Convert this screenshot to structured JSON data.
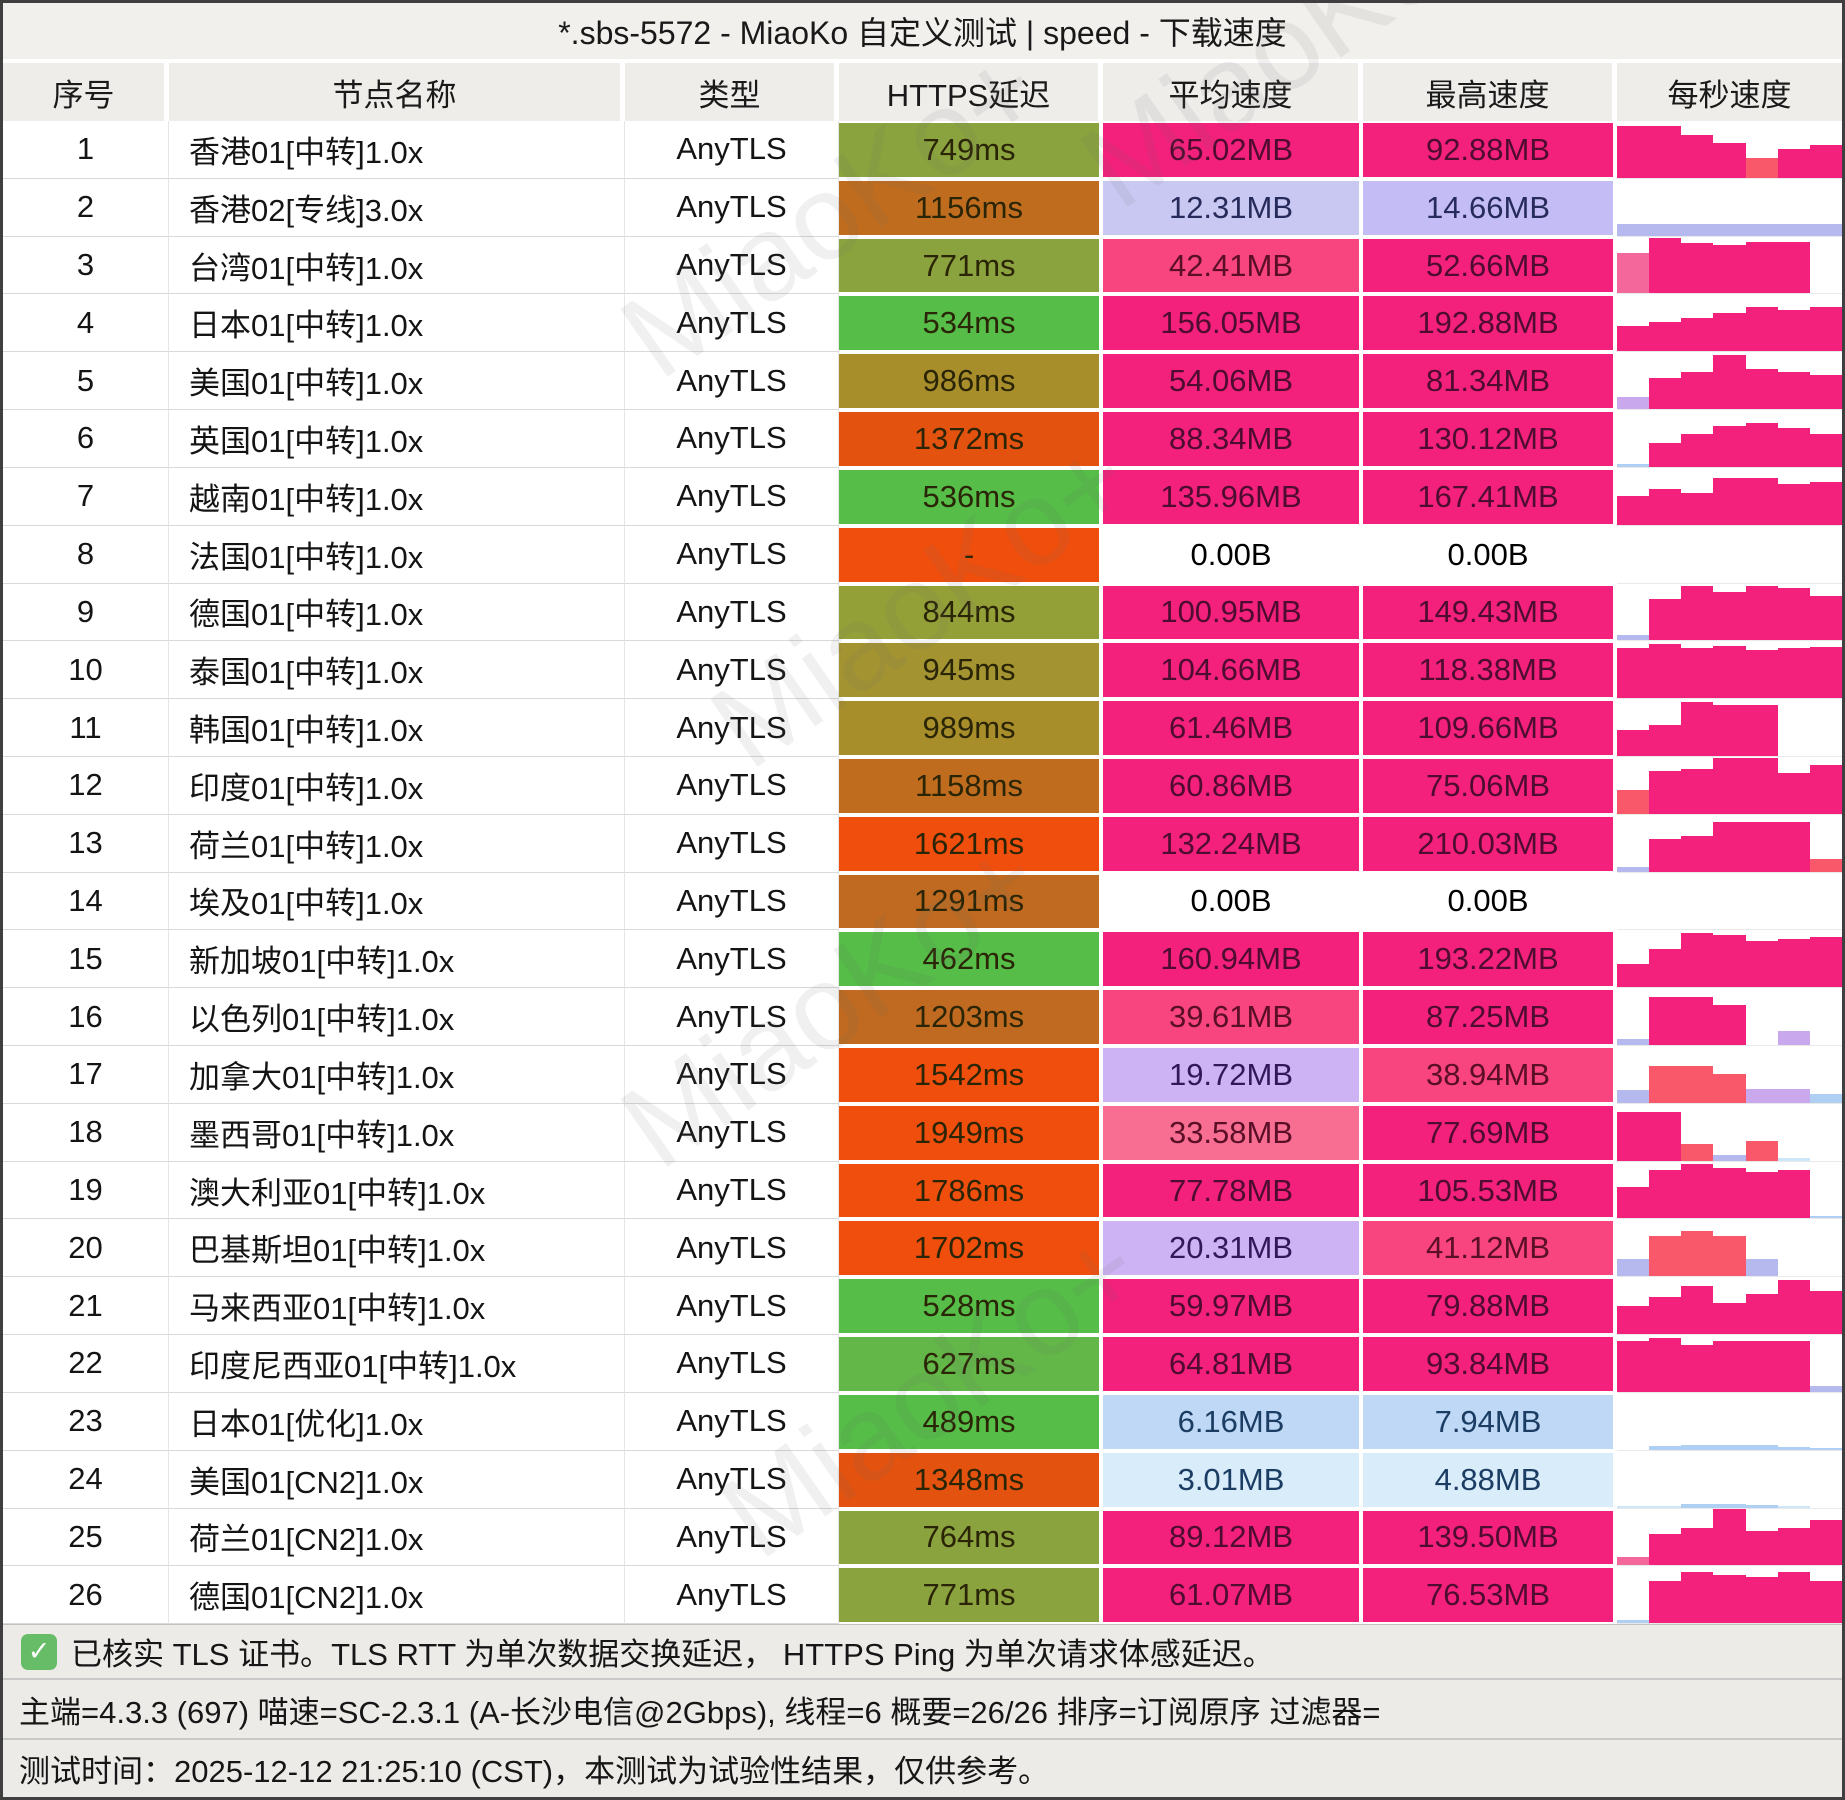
{
  "title": "*.sbs-5572 - MiaoKo 自定义测试 | speed - 下载速度",
  "watermark": "MiaoKo+",
  "columns": {
    "num": "序号",
    "name": "节点名称",
    "type": "类型",
    "latency": "HTTPS延迟",
    "avg": "平均速度",
    "max": "最高速度",
    "per_second": "每秒速度"
  },
  "colors": {
    "chart": {
      "p": "#F3207C",
      "r": "#F9586B",
      "m": "#F4679A",
      "v": "#C9A8EE",
      "l": "#B6B9EE",
      "b": "#AFD0F2",
      "lb": "#CDE6F8"
    },
    "cell_text": {
      "#F3207C": "#4E0C30",
      "#F8457F": "#5A0F26",
      "#F76E92": "#5A0F26",
      "#C9C8F2": "#272B5B",
      "#C4BCF5": "#272B5B",
      "#CDB3F3": "#33175B",
      "#BFD8F6": "#1C3D63",
      "#D8ECFA": "#1C3D63",
      "#FFFFFF": "#000000"
    },
    "latency_text": "#2B2507"
  },
  "chart_data": {
    "type": "table",
    "title": "*.sbs-5572 - MiaoKo 自定义测试 | speed - 下载速度",
    "note": "每秒速度 column is a per-second download speed mini bar chart; bars listed as [height_fraction, color_key]"
  },
  "rows": [
    {
      "num": "1",
      "name": "香港01[中转]1.0x",
      "type": "AnyTLS",
      "latency": "749ms",
      "latency_color": "#8BA33E",
      "avg": "65.02MB",
      "avg_color": "#F3207C",
      "max": "92.88MB",
      "max_color": "#F3207C",
      "chart": [
        [
          0.92,
          "p"
        ],
        [
          0.92,
          "p"
        ],
        [
          0.75,
          "p"
        ],
        [
          0.62,
          "p"
        ],
        [
          0.35,
          "r"
        ],
        [
          0.5,
          "p"
        ],
        [
          0.58,
          "p"
        ]
      ]
    },
    {
      "num": "2",
      "name": "香港02[专线]3.0x",
      "type": "AnyTLS",
      "latency": "1156ms",
      "latency_color": "#C06C1E",
      "avg": "12.31MB",
      "avg_color": "#C9C8F2",
      "max": "14.66MB",
      "max_color": "#C4BCF5",
      "chart": [
        [
          0.2,
          "l"
        ],
        [
          0.2,
          "l"
        ],
        [
          0.2,
          "l"
        ],
        [
          0.2,
          "l"
        ],
        [
          0.2,
          "l"
        ],
        [
          0.2,
          "l"
        ],
        [
          0.2,
          "l"
        ]
      ]
    },
    {
      "num": "3",
      "name": "台湾01[中转]1.0x",
      "type": "AnyTLS",
      "latency": "771ms",
      "latency_color": "#8BA33E",
      "avg": "42.41MB",
      "avg_color": "#F8457F",
      "max": "52.66MB",
      "max_color": "#F3207C",
      "chart": [
        [
          0.72,
          "m"
        ],
        [
          0.97,
          "p"
        ],
        [
          0.88,
          "p"
        ],
        [
          0.85,
          "p"
        ],
        [
          0.9,
          "p"
        ],
        [
          0.9,
          "p"
        ],
        [
          0,
          "p"
        ]
      ]
    },
    {
      "num": "4",
      "name": "日本01[中转]1.0x",
      "type": "AnyTLS",
      "latency": "534ms",
      "latency_color": "#55BD48",
      "avg": "156.05MB",
      "avg_color": "#F3207C",
      "max": "192.88MB",
      "max_color": "#F3207C",
      "chart": [
        [
          0.45,
          "p"
        ],
        [
          0.52,
          "p"
        ],
        [
          0.58,
          "p"
        ],
        [
          0.68,
          "p"
        ],
        [
          0.78,
          "p"
        ],
        [
          0.72,
          "p"
        ],
        [
          0.78,
          "p"
        ]
      ]
    },
    {
      "num": "5",
      "name": "美国01[中转]1.0x",
      "type": "AnyTLS",
      "latency": "986ms",
      "latency_color": "#A88E2B",
      "avg": "54.06MB",
      "avg_color": "#F3207C",
      "max": "81.34MB",
      "max_color": "#F3207C",
      "chart": [
        [
          0.22,
          "v"
        ],
        [
          0.55,
          "p"
        ],
        [
          0.65,
          "p"
        ],
        [
          0.95,
          "p"
        ],
        [
          0.7,
          "p"
        ],
        [
          0.65,
          "p"
        ],
        [
          0.6,
          "p"
        ]
      ]
    },
    {
      "num": "6",
      "name": "英国01[中转]1.0x",
      "type": "AnyTLS",
      "latency": "1372ms",
      "latency_color": "#E4520F",
      "avg": "88.34MB",
      "avg_color": "#F3207C",
      "max": "130.12MB",
      "max_color": "#F3207C",
      "chart": [
        [
          0.05,
          "b"
        ],
        [
          0.42,
          "p"
        ],
        [
          0.58,
          "p"
        ],
        [
          0.72,
          "p"
        ],
        [
          0.78,
          "p"
        ],
        [
          0.68,
          "p"
        ],
        [
          0.58,
          "p"
        ]
      ]
    },
    {
      "num": "7",
      "name": "越南01[中转]1.0x",
      "type": "AnyTLS",
      "latency": "536ms",
      "latency_color": "#55BD48",
      "avg": "135.96MB",
      "avg_color": "#F3207C",
      "max": "167.41MB",
      "max_color": "#F3207C",
      "chart": [
        [
          0.5,
          "p"
        ],
        [
          0.62,
          "p"
        ],
        [
          0.55,
          "p"
        ],
        [
          0.82,
          "p"
        ],
        [
          0.82,
          "p"
        ],
        [
          0.72,
          "p"
        ],
        [
          0.75,
          "p"
        ]
      ]
    },
    {
      "num": "8",
      "name": "法国01[中转]1.0x",
      "type": "AnyTLS",
      "latency": "-",
      "latency_color": "#F04E0D",
      "avg": "0.00B",
      "avg_color": "#FFFFFF",
      "max": "0.00B",
      "max_color": "#FFFFFF",
      "chart": []
    },
    {
      "num": "9",
      "name": "德国01[中转]1.0x",
      "type": "AnyTLS",
      "latency": "844ms",
      "latency_color": "#93A038",
      "avg": "100.95MB",
      "avg_color": "#F3207C",
      "max": "149.43MB",
      "max_color": "#F3207C",
      "chart": [
        [
          0.1,
          "l"
        ],
        [
          0.72,
          "p"
        ],
        [
          0.95,
          "p"
        ],
        [
          0.85,
          "p"
        ],
        [
          0.95,
          "p"
        ],
        [
          0.92,
          "p"
        ],
        [
          0.78,
          "p"
        ]
      ]
    },
    {
      "num": "10",
      "name": "泰国01[中转]1.0x",
      "type": "AnyTLS",
      "latency": "945ms",
      "latency_color": "#A39431",
      "avg": "104.66MB",
      "avg_color": "#F3207C",
      "max": "118.38MB",
      "max_color": "#F3207C",
      "chart": [
        [
          0.88,
          "p"
        ],
        [
          0.95,
          "p"
        ],
        [
          0.88,
          "p"
        ],
        [
          0.92,
          "p"
        ],
        [
          0.85,
          "p"
        ],
        [
          0.88,
          "p"
        ],
        [
          0.9,
          "p"
        ]
      ]
    },
    {
      "num": "11",
      "name": "韩国01[中转]1.0x",
      "type": "AnyTLS",
      "latency": "989ms",
      "latency_color": "#A88E2B",
      "avg": "61.46MB",
      "avg_color": "#F3207C",
      "max": "109.66MB",
      "max_color": "#F3207C",
      "chart": [
        [
          0.45,
          "p"
        ],
        [
          0.55,
          "p"
        ],
        [
          0.95,
          "p"
        ],
        [
          0.9,
          "p"
        ],
        [
          0.9,
          "p"
        ],
        [
          0,
          "p"
        ],
        [
          0,
          "p"
        ]
      ]
    },
    {
      "num": "12",
      "name": "印度01[中转]1.0x",
      "type": "AnyTLS",
      "latency": "1158ms",
      "latency_color": "#C06C1E",
      "avg": "60.86MB",
      "avg_color": "#F3207C",
      "max": "75.06MB",
      "max_color": "#F3207C",
      "chart": [
        [
          0.42,
          "r"
        ],
        [
          0.75,
          "p"
        ],
        [
          0.78,
          "p"
        ],
        [
          0.98,
          "p"
        ],
        [
          0.98,
          "p"
        ],
        [
          0.72,
          "p"
        ],
        [
          0.85,
          "p"
        ]
      ]
    },
    {
      "num": "13",
      "name": "荷兰01[中转]1.0x",
      "type": "AnyTLS",
      "latency": "1621ms",
      "latency_color": "#F04E0D",
      "avg": "132.24MB",
      "avg_color": "#F3207C",
      "max": "210.03MB",
      "max_color": "#F3207C",
      "chart": [
        [
          0.08,
          "l"
        ],
        [
          0.58,
          "p"
        ],
        [
          0.62,
          "p"
        ],
        [
          0.88,
          "p"
        ],
        [
          0.88,
          "p"
        ],
        [
          0.88,
          "p"
        ],
        [
          0.22,
          "r"
        ]
      ]
    },
    {
      "num": "14",
      "name": "埃及01[中转]1.0x",
      "type": "AnyTLS",
      "latency": "1291ms",
      "latency_color": "#BF6A20",
      "avg": "0.00B",
      "avg_color": "#FFFFFF",
      "max": "0.00B",
      "max_color": "#FFFFFF",
      "chart": []
    },
    {
      "num": "15",
      "name": "新加坡01[中转]1.0x",
      "type": "AnyTLS",
      "latency": "462ms",
      "latency_color": "#55BD48",
      "avg": "160.94MB",
      "avg_color": "#F3207C",
      "max": "193.22MB",
      "max_color": "#F3207C",
      "chart": [
        [
          0.4,
          "p"
        ],
        [
          0.68,
          "p"
        ],
        [
          0.95,
          "p"
        ],
        [
          0.92,
          "p"
        ],
        [
          0.82,
          "p"
        ],
        [
          0.85,
          "p"
        ],
        [
          0.88,
          "p"
        ]
      ]
    },
    {
      "num": "16",
      "name": "以色列01[中转]1.0x",
      "type": "AnyTLS",
      "latency": "1203ms",
      "latency_color": "#BF6A20",
      "avg": "39.61MB",
      "avg_color": "#F8457F",
      "max": "87.25MB",
      "max_color": "#F3207C",
      "chart": [
        [
          0.1,
          "l"
        ],
        [
          0.85,
          "p"
        ],
        [
          0.85,
          "p"
        ],
        [
          0.7,
          "p"
        ],
        [
          0,
          "p"
        ],
        [
          0.25,
          "v"
        ],
        [
          0,
          "p"
        ]
      ]
    },
    {
      "num": "17",
      "name": "加拿大01[中转]1.0x",
      "type": "AnyTLS",
      "latency": "1542ms",
      "latency_color": "#F04E0D",
      "avg": "19.72MB",
      "avg_color": "#CDB3F3",
      "max": "38.94MB",
      "max_color": "#F8457F",
      "chart": [
        [
          0.22,
          "l"
        ],
        [
          0.65,
          "r"
        ],
        [
          0.65,
          "r"
        ],
        [
          0.5,
          "r"
        ],
        [
          0.25,
          "v"
        ],
        [
          0.25,
          "v"
        ],
        [
          0.15,
          "b"
        ]
      ]
    },
    {
      "num": "18",
      "name": "墨西哥01[中转]1.0x",
      "type": "AnyTLS",
      "latency": "1949ms",
      "latency_color": "#F04E0D",
      "avg": "33.58MB",
      "avg_color": "#F76E92",
      "max": "77.69MB",
      "max_color": "#F3207C",
      "chart": [
        [
          0.85,
          "p"
        ],
        [
          0.85,
          "p"
        ],
        [
          0.3,
          "r"
        ],
        [
          0.1,
          "l"
        ],
        [
          0.35,
          "r"
        ],
        [
          0.05,
          "lb"
        ],
        [
          0,
          "p"
        ]
      ]
    },
    {
      "num": "19",
      "name": "澳大利亚01[中转]1.0x",
      "type": "AnyTLS",
      "latency": "1786ms",
      "latency_color": "#F04E0D",
      "avg": "77.78MB",
      "avg_color": "#F3207C",
      "max": "105.53MB",
      "max_color": "#F3207C",
      "chart": [
        [
          0.55,
          "p"
        ],
        [
          0.85,
          "p"
        ],
        [
          0.95,
          "p"
        ],
        [
          0.88,
          "p"
        ],
        [
          0.82,
          "p"
        ],
        [
          0.85,
          "p"
        ],
        [
          0.05,
          "b"
        ]
      ]
    },
    {
      "num": "20",
      "name": "巴基斯坦01[中转]1.0x",
      "type": "AnyTLS",
      "latency": "1702ms",
      "latency_color": "#F04E0D",
      "avg": "20.31MB",
      "avg_color": "#CDB3F3",
      "max": "41.12MB",
      "max_color": "#F8457F",
      "chart": [
        [
          0.3,
          "l"
        ],
        [
          0.7,
          "r"
        ],
        [
          0.8,
          "r"
        ],
        [
          0.7,
          "r"
        ],
        [
          0.3,
          "l"
        ],
        [
          0,
          "p"
        ],
        [
          0,
          "p"
        ]
      ]
    },
    {
      "num": "21",
      "name": "马来西亚01[中转]1.0x",
      "type": "AnyTLS",
      "latency": "528ms",
      "latency_color": "#55BD48",
      "avg": "59.97MB",
      "avg_color": "#F3207C",
      "max": "79.88MB",
      "max_color": "#F3207C",
      "chart": [
        [
          0.5,
          "p"
        ],
        [
          0.65,
          "p"
        ],
        [
          0.85,
          "p"
        ],
        [
          0.55,
          "p"
        ],
        [
          0.7,
          "p"
        ],
        [
          0.95,
          "p"
        ],
        [
          0.75,
          "p"
        ]
      ]
    },
    {
      "num": "22",
      "name": "印度尼西亚01[中转]1.0x",
      "type": "AnyTLS",
      "latency": "627ms",
      "latency_color": "#63B748",
      "avg": "64.81MB",
      "avg_color": "#F3207C",
      "max": "93.84MB",
      "max_color": "#F3207C",
      "chart": [
        [
          0.9,
          "p"
        ],
        [
          0.95,
          "p"
        ],
        [
          0.82,
          "p"
        ],
        [
          0.9,
          "p"
        ],
        [
          0.9,
          "p"
        ],
        [
          0.9,
          "p"
        ],
        [
          0.1,
          "l"
        ]
      ]
    },
    {
      "num": "23",
      "name": "日本01[优化]1.0x",
      "type": "AnyTLS",
      "latency": "489ms",
      "latency_color": "#55BD48",
      "avg": "6.16MB",
      "avg_color": "#BFD8F6",
      "max": "7.94MB",
      "max_color": "#BFD8F6",
      "chart": [
        [
          0,
          "b"
        ],
        [
          0.06,
          "b"
        ],
        [
          0.09,
          "b"
        ],
        [
          0.09,
          "b"
        ],
        [
          0.08,
          "b"
        ],
        [
          0.05,
          "b"
        ],
        [
          0.03,
          "b"
        ]
      ]
    },
    {
      "num": "24",
      "name": "美国01[CN2]1.0x",
      "type": "AnyTLS",
      "latency": "1348ms",
      "latency_color": "#E4520F",
      "avg": "3.01MB",
      "avg_color": "#D8ECFA",
      "max": "4.88MB",
      "max_color": "#D8ECFA",
      "chart": [
        [
          0.03,
          "lb"
        ],
        [
          0.03,
          "lb"
        ],
        [
          0.06,
          "b"
        ],
        [
          0.06,
          "b"
        ],
        [
          0.04,
          "b"
        ],
        [
          0.02,
          "lb"
        ],
        [
          0,
          "b"
        ]
      ]
    },
    {
      "num": "25",
      "name": "荷兰01[CN2]1.0x",
      "type": "AnyTLS",
      "latency": "764ms",
      "latency_color": "#8BA33E",
      "avg": "89.12MB",
      "avg_color": "#F3207C",
      "max": "139.50MB",
      "max_color": "#F3207C",
      "chart": [
        [
          0.15,
          "m"
        ],
        [
          0.55,
          "p"
        ],
        [
          0.65,
          "p"
        ],
        [
          1,
          "p"
        ],
        [
          0.6,
          "p"
        ],
        [
          0.65,
          "p"
        ],
        [
          0.8,
          "p"
        ]
      ]
    },
    {
      "num": "26",
      "name": "德国01[CN2]1.0x",
      "type": "AnyTLS",
      "latency": "771ms",
      "latency_color": "#8BA33E",
      "avg": "61.07MB",
      "avg_color": "#F3207C",
      "max": "76.53MB",
      "max_color": "#F3207C",
      "chart": [
        [
          0.05,
          "b"
        ],
        [
          0.75,
          "p"
        ],
        [
          0.9,
          "p"
        ],
        [
          0.85,
          "p"
        ],
        [
          0.82,
          "p"
        ],
        [
          0.9,
          "p"
        ],
        [
          0.75,
          "p"
        ]
      ]
    }
  ],
  "footer": {
    "check_icon": "✓",
    "note1": "已核实 TLS 证书。TLS RTT 为单次数据交换延迟， HTTPS Ping 为单次请求体感延迟。",
    "note2": "主端=4.3.3 (697) 喵速=SC-2.3.1 (A-长沙电信@2Gbps), 线程=6 概要=26/26 排序=订阅原序 过滤器=",
    "note3": "测试时间：2025-12-12 21:25:10 (CST)，本测试为试验性结果，仅供参考。"
  }
}
